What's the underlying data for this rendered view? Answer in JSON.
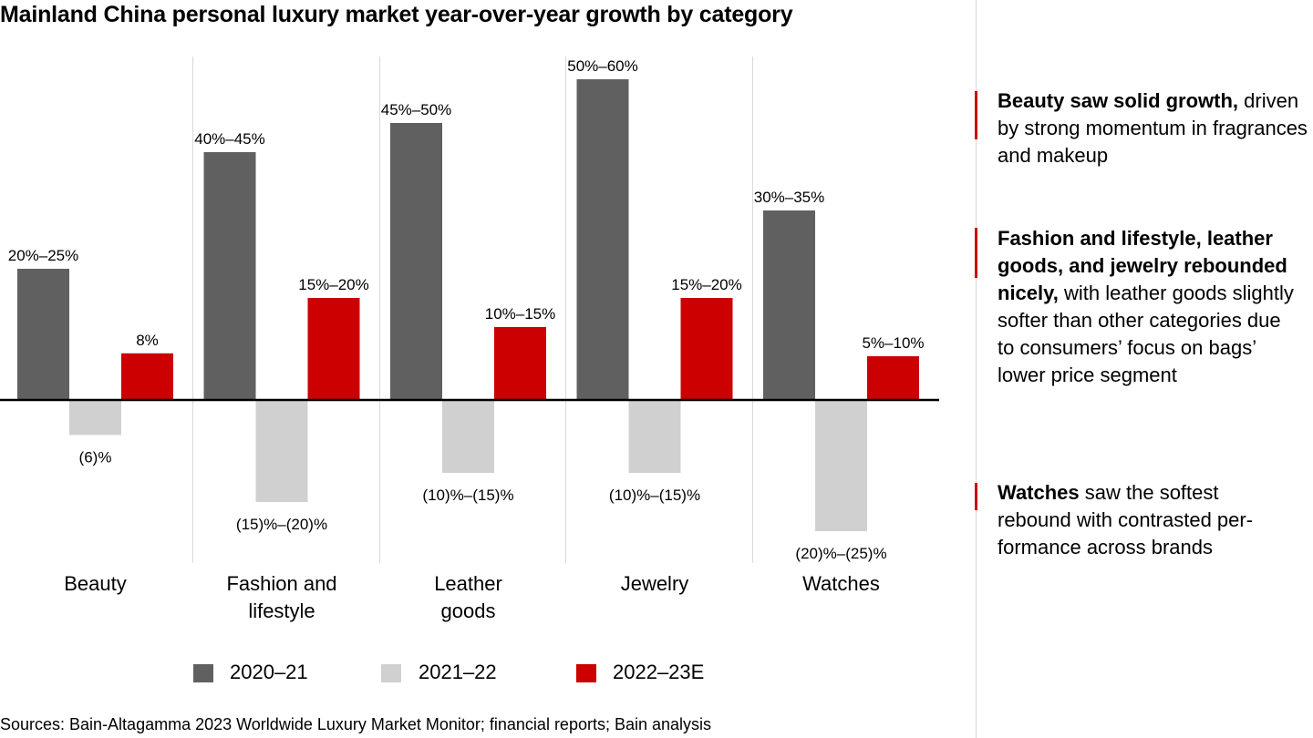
{
  "title": "Mainland China personal luxury market year-over-year growth by category",
  "chart_data": {
    "type": "bar",
    "title": "Mainland China personal luxury market year-over-year growth by category",
    "xlabel": "",
    "ylabel": "",
    "ylim": [
      -25,
      60
    ],
    "grid": false,
    "legend_position": "bottom",
    "categories": [
      "Beauty",
      "Fashion and lifestyle",
      "Leather goods",
      "Jewelry",
      "Watches"
    ],
    "category_lines": [
      [
        "Beauty"
      ],
      [
        "Fashion and",
        "lifestyle"
      ],
      [
        "Leather",
        "goods"
      ],
      [
        "Jewelry"
      ],
      [
        "Watches"
      ]
    ],
    "series": [
      {
        "name": "2020–21",
        "color": "#606060",
        "values": [
          22.5,
          42.5,
          47.5,
          55,
          32.5
        ],
        "labels": [
          "20%–25%",
          "40%–45%",
          "45%–50%",
          "50%–60%",
          "30%–35%"
        ]
      },
      {
        "name": "2021–22",
        "color": "#d0d0d0",
        "values": [
          -6,
          -17.5,
          -12.5,
          -12.5,
          -22.5
        ],
        "labels": [
          "(6)%",
          "(15)%–(20)%",
          "(10)%–(15)%",
          "(10)%–(15)%",
          "(20)%–(25)%"
        ]
      },
      {
        "name": "2022–23E",
        "color": "#cc0000",
        "values": [
          8,
          17.5,
          12.5,
          17.5,
          7.5
        ],
        "labels": [
          "8%",
          "15%–20%",
          "10%–15%",
          "15%–20%",
          "5%–10%"
        ]
      }
    ]
  },
  "notes": [
    {
      "bold": "Beauty saw solid growth,",
      "text": " driven by strong momentum in fragrances and makeup"
    },
    {
      "bold": "Fashion and lifestyle, leather goods, and jewelry rebounded nicely,",
      "text": " with leather goods slightly softer than other categories due to consumers’ focus on bags’ lower price segment"
    },
    {
      "bold": "Watches",
      "text": " saw the softest rebound with contrasted per-formance across brands"
    }
  ],
  "source": "Sources: Bain-Altagamma 2023 Worldwide Luxury Market Monitor; financial reports; Bain analysis",
  "accent_color": "#cc0000"
}
